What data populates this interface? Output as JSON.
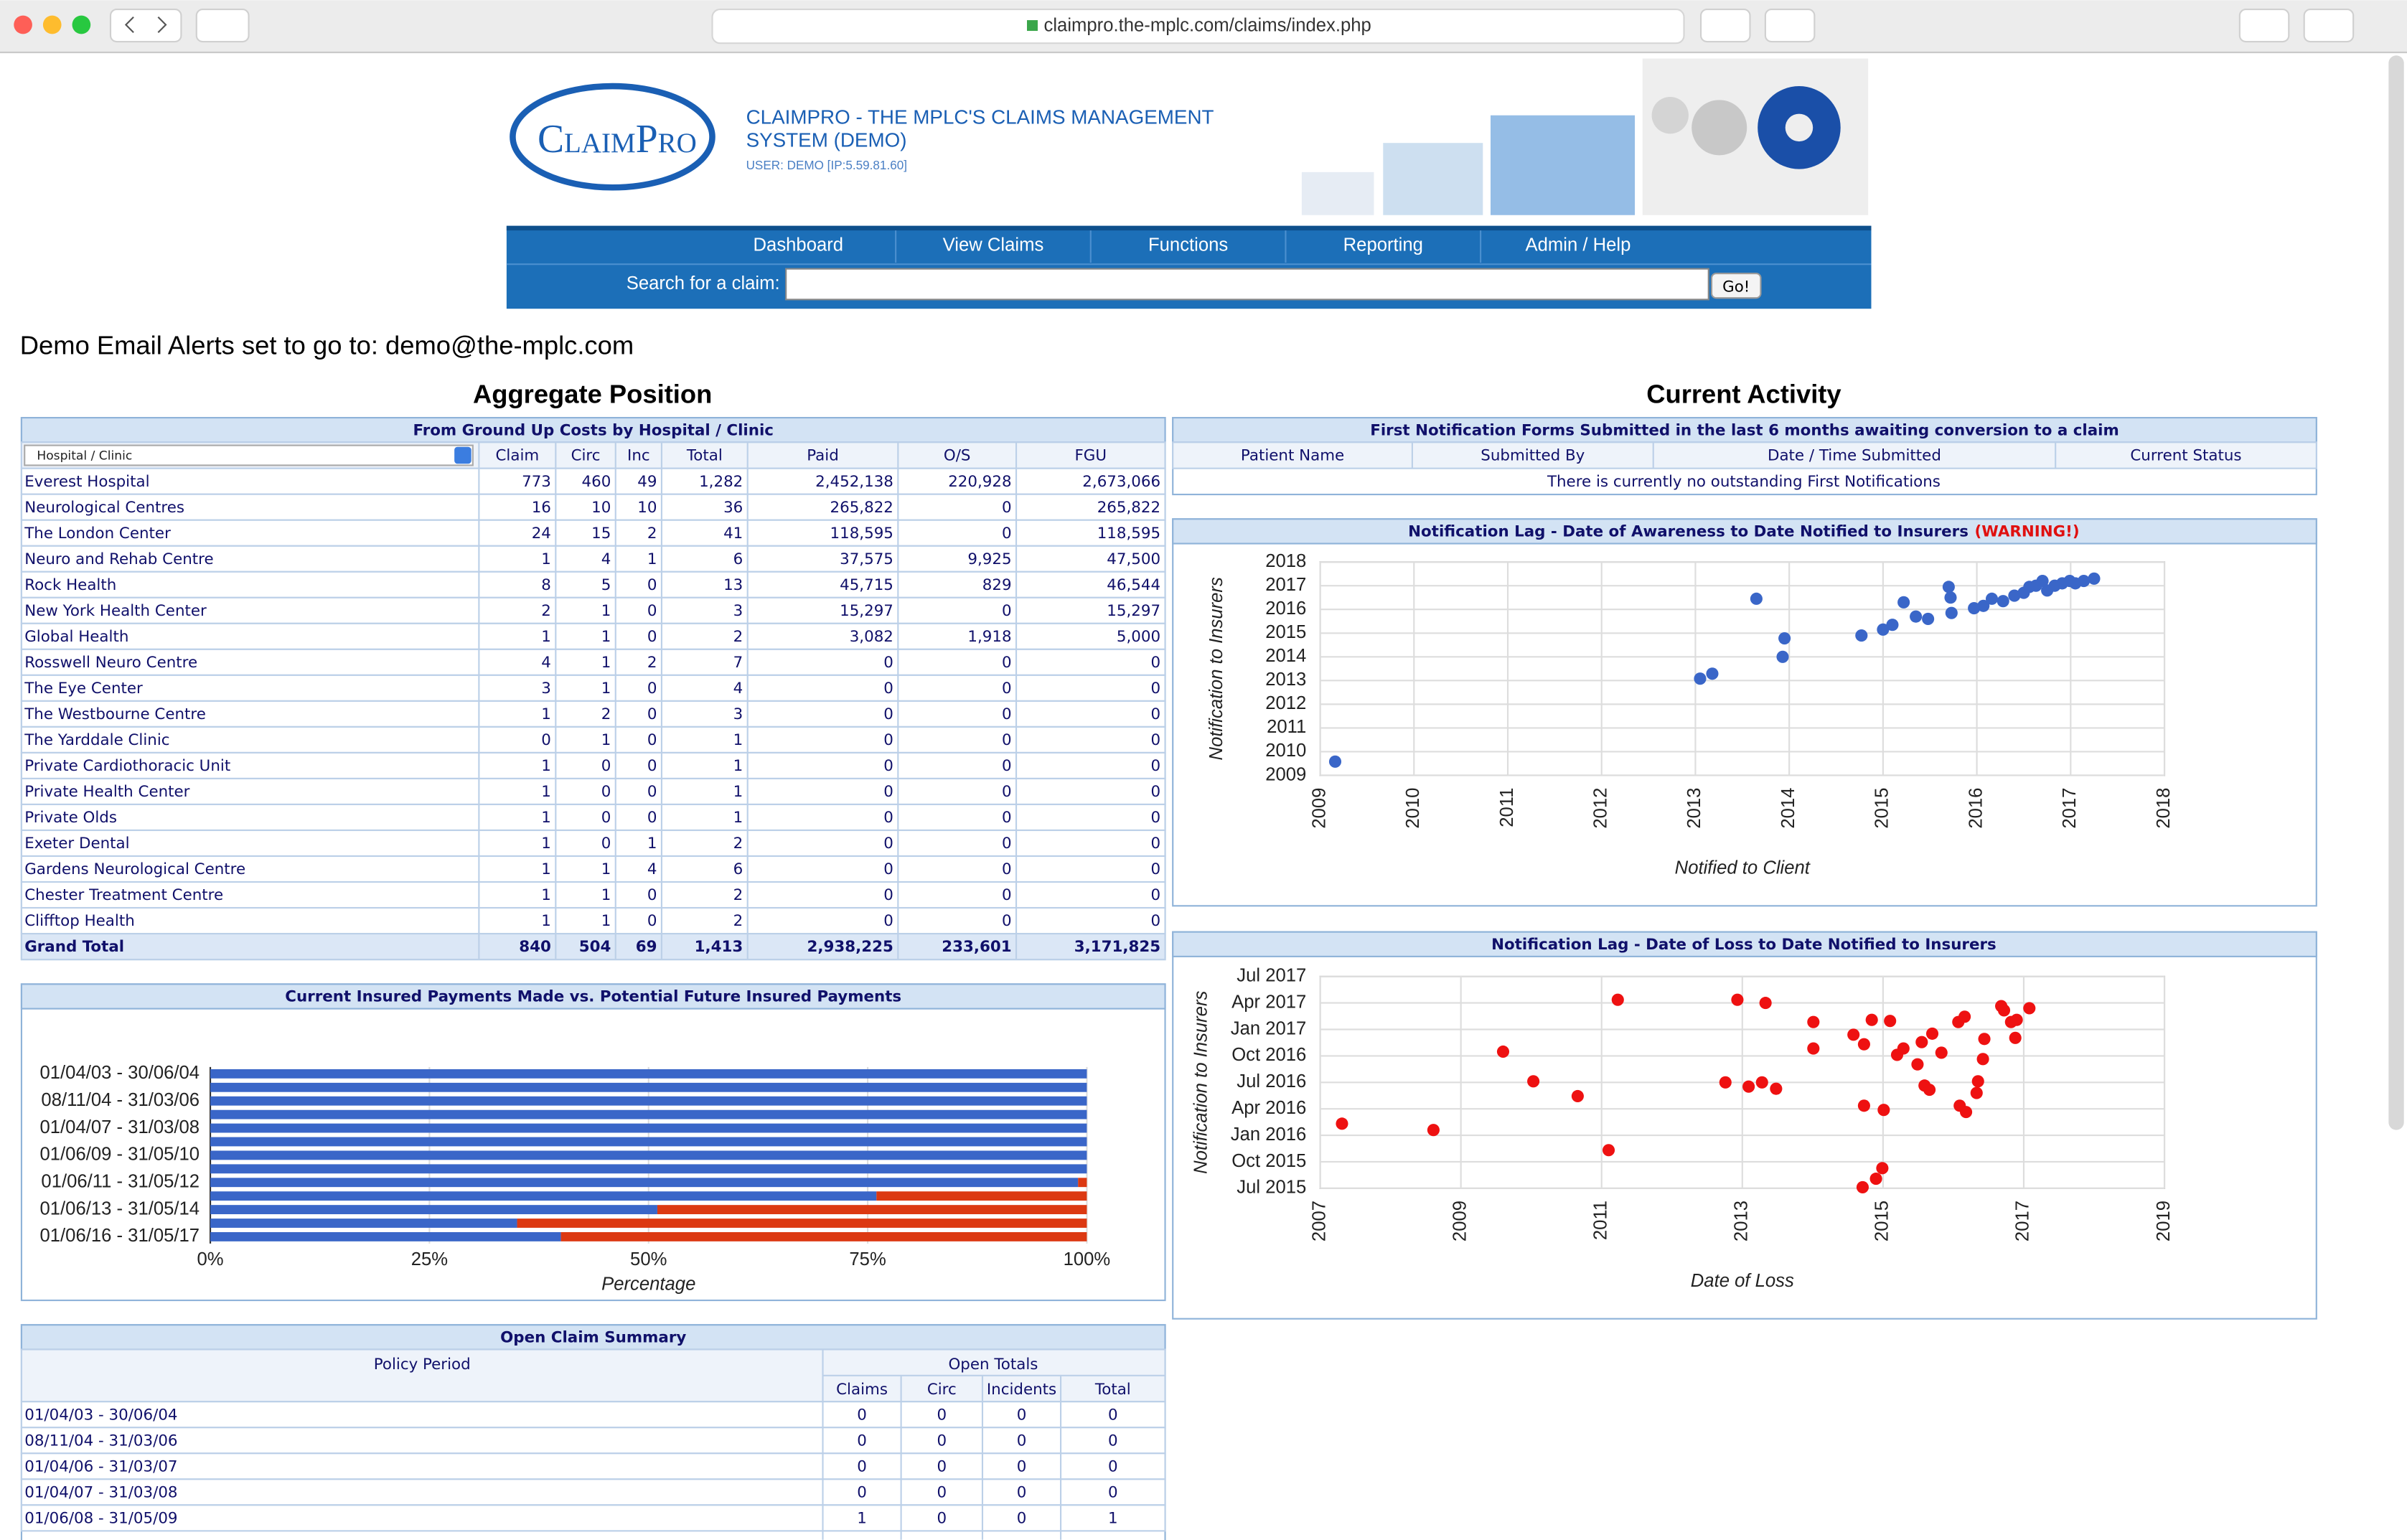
{
  "browser": {
    "url": "claimpro.the-mplc.com/claims/index.php"
  },
  "header": {
    "logo": "ClaimPro",
    "title_line1": "CLAIMPRO - THE MPLC'S CLAIMS MANAGEMENT",
    "title_line2": "SYSTEM (DEMO)",
    "user": "USER: DEMO [IP:5.59.81.60]"
  },
  "nav": [
    "Dashboard",
    "View Claims",
    "Functions",
    "Reporting",
    "Admin / Help"
  ],
  "search": {
    "label": "Search for a claim:",
    "button": "Go!"
  },
  "alert": "Demo Email Alerts set to go to: demo@the-mplc.com",
  "aggregate": {
    "heading": "Aggregate Position",
    "caption": "From Ground Up Costs by Hospital / Clinic",
    "select": "Hospital / Clinic",
    "columns": [
      "Claim",
      "Circ",
      "Inc",
      "Total",
      "Paid",
      "O/S",
      "FGU"
    ],
    "rows": [
      [
        "Everest Hospital",
        "773",
        "460",
        "49",
        "1,282",
        "2,452,138",
        "220,928",
        "2,673,066"
      ],
      [
        "Neurological Centres",
        "16",
        "10",
        "10",
        "36",
        "265,822",
        "0",
        "265,822"
      ],
      [
        "The London Center",
        "24",
        "15",
        "2",
        "41",
        "118,595",
        "0",
        "118,595"
      ],
      [
        "Neuro and Rehab Centre",
        "1",
        "4",
        "1",
        "6",
        "37,575",
        "9,925",
        "47,500"
      ],
      [
        "Rock Health",
        "8",
        "5",
        "0",
        "13",
        "45,715",
        "829",
        "46,544"
      ],
      [
        "New York Health Center",
        "2",
        "1",
        "0",
        "3",
        "15,297",
        "0",
        "15,297"
      ],
      [
        "Global Health",
        "1",
        "1",
        "0",
        "2",
        "3,082",
        "1,918",
        "5,000"
      ],
      [
        "Rosswell Neuro Centre",
        "4",
        "1",
        "2",
        "7",
        "0",
        "0",
        "0"
      ],
      [
        "The Eye Center",
        "3",
        "1",
        "0",
        "4",
        "0",
        "0",
        "0"
      ],
      [
        "The Westbourne Centre",
        "1",
        "2",
        "0",
        "3",
        "0",
        "0",
        "0"
      ],
      [
        "The Yarddale Clinic",
        "0",
        "1",
        "0",
        "1",
        "0",
        "0",
        "0"
      ],
      [
        "Private Cardiothoracic Unit",
        "1",
        "0",
        "0",
        "1",
        "0",
        "0",
        "0"
      ],
      [
        "Private Health Center",
        "1",
        "0",
        "0",
        "1",
        "0",
        "0",
        "0"
      ],
      [
        "Private Olds",
        "1",
        "0",
        "0",
        "1",
        "0",
        "0",
        "0"
      ],
      [
        "Exeter Dental",
        "1",
        "0",
        "1",
        "2",
        "0",
        "0",
        "0"
      ],
      [
        "Gardens Neurological Centre",
        "1",
        "1",
        "4",
        "6",
        "0",
        "0",
        "0"
      ],
      [
        "Chester Treatment Centre",
        "1",
        "1",
        "0",
        "2",
        "0",
        "0",
        "0"
      ],
      [
        "Clifftop Health",
        "1",
        "1",
        "0",
        "2",
        "0",
        "0",
        "0"
      ]
    ],
    "total": [
      "Grand Total",
      "840",
      "504",
      "69",
      "1,413",
      "2,938,225",
      "233,601",
      "3,171,825"
    ]
  },
  "activity": {
    "heading": "Current Activity",
    "caption": "First Notification Forms Submitted in the last 6 months awaiting conversion to a claim",
    "columns": [
      "Patient Name",
      "Submitted By",
      "Date / Time Submitted",
      "Current Status"
    ],
    "empty": "There is currently no outstanding First Notifications"
  },
  "open_claims": {
    "caption": "Open Claim Summary",
    "policy_header": "Policy Period",
    "totals_header": "Open Totals",
    "columns": [
      "Claims",
      "Circ",
      "Incidents",
      "Total"
    ],
    "rows": [
      [
        "01/04/03 - 30/06/04",
        "0",
        "0",
        "0",
        "0"
      ],
      [
        "08/11/04 - 31/03/06",
        "0",
        "0",
        "0",
        "0"
      ],
      [
        "01/04/06 - 31/03/07",
        "0",
        "0",
        "0",
        "0"
      ],
      [
        "01/04/07 - 31/03/08",
        "0",
        "0",
        "0",
        "0"
      ],
      [
        "01/06/08 - 31/05/09",
        "1",
        "0",
        "0",
        "1"
      ]
    ]
  },
  "chart_data": [
    {
      "type": "bar",
      "orientation": "horizontal",
      "stacked": true,
      "title": "Current Insured Payments Made vs. Potential Future Insured Payments",
      "x_label": "Percentage",
      "categories": [
        "01/04/03 - 30/06/04",
        null,
        "08/11/04 - 31/03/06",
        null,
        "01/04/07 - 31/03/08",
        null,
        "01/06/09 - 31/05/10",
        null,
        "01/06/11 - 31/05/12",
        null,
        "01/06/13 - 31/05/14",
        null,
        "01/06/16 - 31/05/17"
      ],
      "series": [
        {
          "color": "#3a66c8",
          "values": [
            100,
            100,
            100,
            100,
            100,
            100,
            100,
            100,
            99,
            76,
            51,
            35,
            40
          ]
        },
        {
          "color": "#dc3912",
          "values": [
            0,
            0,
            0,
            0,
            0,
            0,
            0,
            0,
            1,
            24,
            49,
            65,
            60
          ]
        }
      ],
      "xlim": [
        0,
        100
      ],
      "xticks": [
        {
          "value": 0,
          "label": "0%"
        },
        {
          "value": 25,
          "label": "25%"
        },
        {
          "value": 50,
          "label": "50%"
        },
        {
          "value": 75,
          "label": "75%"
        },
        {
          "value": 100,
          "label": "100%"
        }
      ],
      "grid": true
    },
    {
      "type": "scatter",
      "title": "Notification Lag - Date of Awareness to Date Notified to Insurers",
      "warning": "(WARNING!)",
      "x_label": "Notified to Client",
      "y_label": "Notification to Insurers",
      "color": "#3a66c8",
      "x": [
        2009.16,
        2013.65,
        2013.05,
        2013.18,
        2013.95,
        2013.93,
        2014.77,
        2015.0,
        2015.1,
        2015.22,
        2015.35,
        2015.48,
        2015.7,
        2015.72,
        2015.73,
        2015.97,
        2016.07,
        2016.16,
        2016.28,
        2016.4,
        2016.5,
        2016.56,
        2016.63,
        2016.7,
        2016.75,
        2016.83,
        2016.91,
        2016.99,
        2017.05,
        2017.14,
        2017.25
      ],
      "values": [
        2009.58,
        2016.45,
        2013.08,
        2013.29,
        2014.78,
        2014.0,
        2014.9,
        2015.15,
        2015.35,
        2016.3,
        2015.7,
        2015.6,
        2016.95,
        2016.5,
        2015.85,
        2016.05,
        2016.15,
        2016.45,
        2016.35,
        2016.58,
        2016.7,
        2016.95,
        2017.0,
        2017.2,
        2016.8,
        2017.0,
        2017.1,
        2017.2,
        2017.1,
        2017.2,
        2017.3
      ],
      "xlim": [
        2009,
        2018
      ],
      "xticks": [
        2009,
        2010,
        2011,
        2012,
        2013,
        2014,
        2015,
        2016,
        2017,
        2018
      ],
      "ylim": [
        2009,
        2018
      ],
      "yticks": [
        2009,
        2010,
        2011,
        2012,
        2013,
        2014,
        2015,
        2016,
        2017,
        2018
      ],
      "grid": true
    },
    {
      "type": "scatter",
      "title": "Notification Lag - Date of Loss to Date Notified to Insurers",
      "x_label": "Date of Loss",
      "y_label": "Notification to Insurers",
      "color": "#ee1111",
      "x": [
        2007.31,
        2008.61,
        2009.6,
        2010.03,
        2010.66,
        2011.1,
        2011.23,
        2012.76,
        2012.93,
        2013.09,
        2013.28,
        2013.33,
        2013.48,
        2014.01,
        2014.01,
        2014.58,
        2014.71,
        2014.73,
        2014.73,
        2014.84,
        2014.9,
        2014.99,
        2015.01,
        2015.1,
        2015.2,
        2015.29,
        2015.49,
        2015.55,
        2015.59,
        2015.66,
        2015.7,
        2015.83,
        2016.07,
        2016.09,
        2016.16,
        2016.18,
        2016.33,
        2016.35,
        2016.42,
        2016.44,
        2016.68,
        2016.72,
        2016.82,
        2016.88,
        2016.9,
        2017.08
      ],
      "values": [
        2016.11,
        2016.05,
        2016.79,
        2016.51,
        2016.37,
        2015.86,
        2017.28,
        2016.5,
        2017.28,
        2016.46,
        2016.5,
        2017.25,
        2016.44,
        2017.07,
        2016.82,
        2016.95,
        2015.51,
        2016.86,
        2016.28,
        2017.09,
        2015.59,
        2015.69,
        2016.24,
        2017.08,
        2016.76,
        2016.82,
        2016.67,
        2016.88,
        2016.47,
        2016.43,
        2016.96,
        2016.78,
        2017.07,
        2016.28,
        2017.12,
        2016.22,
        2016.4,
        2016.51,
        2016.72,
        2016.91,
        2017.22,
        2017.18,
        2017.07,
        2016.92,
        2017.09,
        2017.2
      ],
      "xlim": [
        2007,
        2019
      ],
      "xticks": [
        2007,
        2009,
        2011,
        2013,
        2015,
        2017,
        2019
      ],
      "ylim": [
        2015.5,
        2017.5
      ],
      "yticks": [
        {
          "value": 2015.5,
          "label": "Jul 2015"
        },
        {
          "value": 2015.75,
          "label": "Oct 2015"
        },
        {
          "value": 2016,
          "label": "Jan 2016"
        },
        {
          "value": 2016.25,
          "label": "Apr 2016"
        },
        {
          "value": 2016.5,
          "label": "Jul 2016"
        },
        {
          "value": 2016.75,
          "label": "Oct 2016"
        },
        {
          "value": 2017,
          "label": "Jan 2017"
        },
        {
          "value": 2017.25,
          "label": "Apr 2017"
        },
        {
          "value": 2017.5,
          "label": "Jul 2017"
        }
      ],
      "grid": true
    }
  ]
}
